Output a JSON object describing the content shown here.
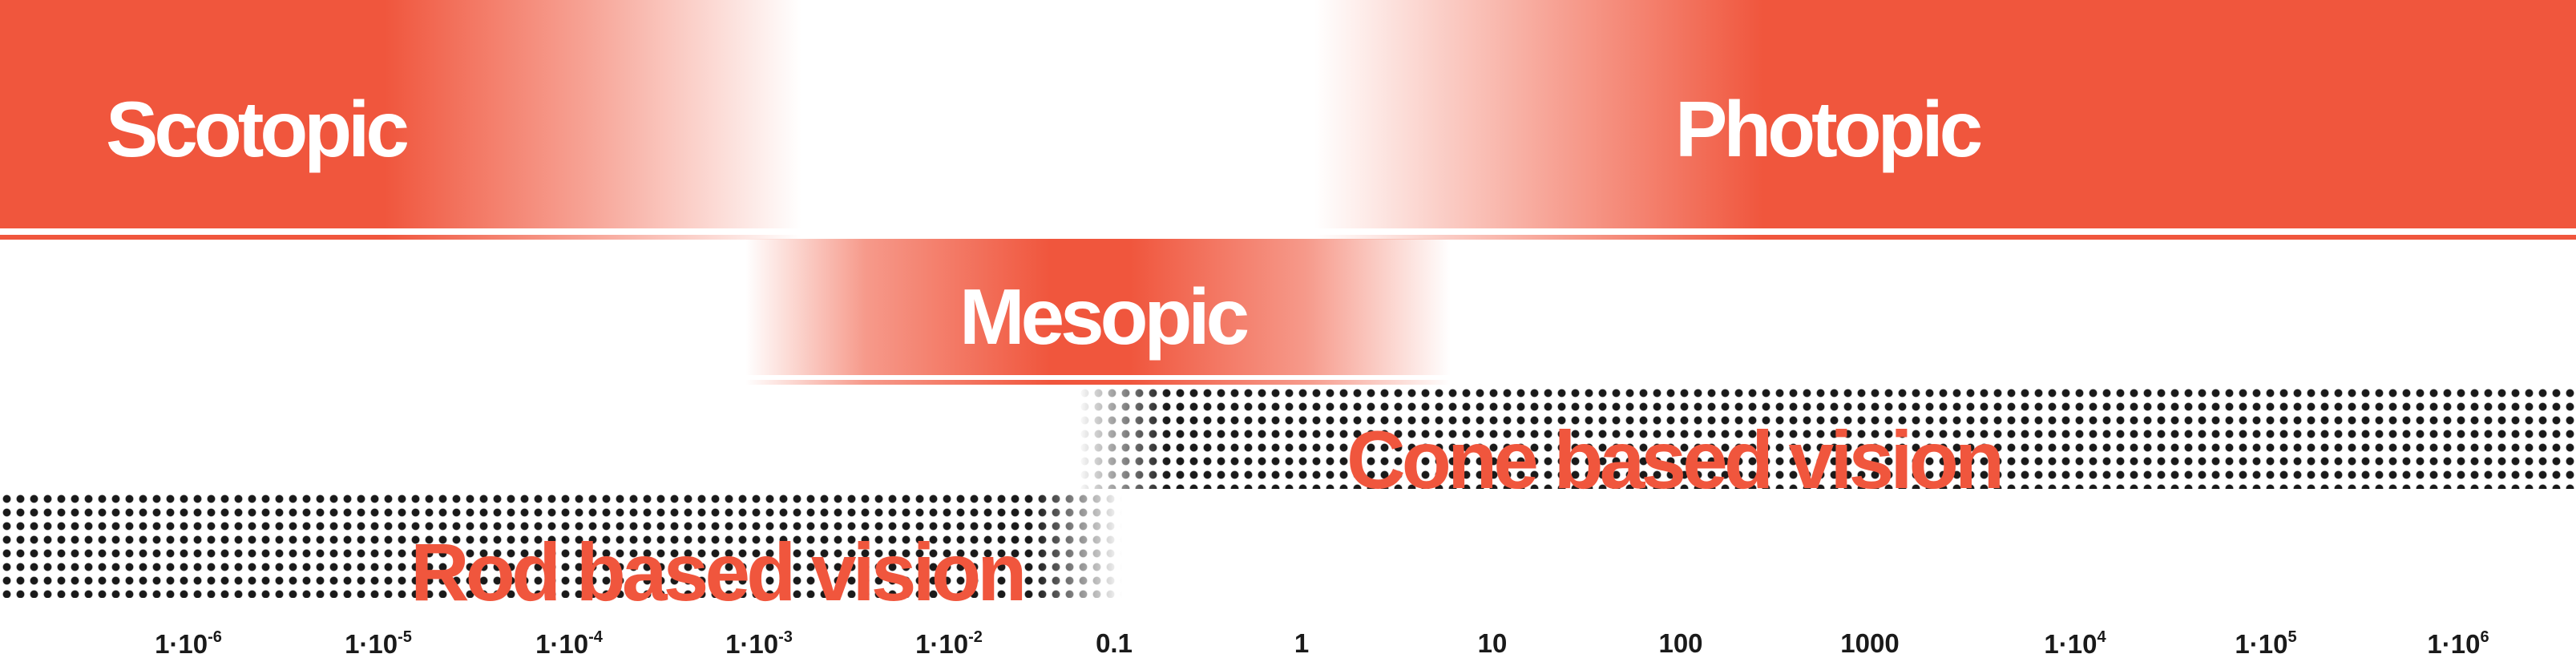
{
  "colors": {
    "accent": "#f0563d",
    "dots": "#1a1a1a",
    "background": "#ffffff"
  },
  "bands": {
    "scotopic": "Scotopic",
    "photopic": "Photopic",
    "mesopic": "Mesopic"
  },
  "vision": {
    "cone": "Cone based vision",
    "rod": "Rod based vision"
  },
  "axis": {
    "ticks": [
      {
        "base": "1·10",
        "exp": "-6"
      },
      {
        "base": "1·10",
        "exp": "-5"
      },
      {
        "base": "1·10",
        "exp": "-4"
      },
      {
        "base": "1·10",
        "exp": "-3"
      },
      {
        "base": "1·10",
        "exp": "-2"
      },
      {
        "base": "0.1",
        "exp": ""
      },
      {
        "base": "1",
        "exp": ""
      },
      {
        "base": "10",
        "exp": ""
      },
      {
        "base": "100",
        "exp": ""
      },
      {
        "base": "1000",
        "exp": ""
      },
      {
        "base": "1·10",
        "exp": "4"
      },
      {
        "base": "1·10",
        "exp": "5"
      },
      {
        "base": "1·10",
        "exp": "6"
      }
    ]
  }
}
